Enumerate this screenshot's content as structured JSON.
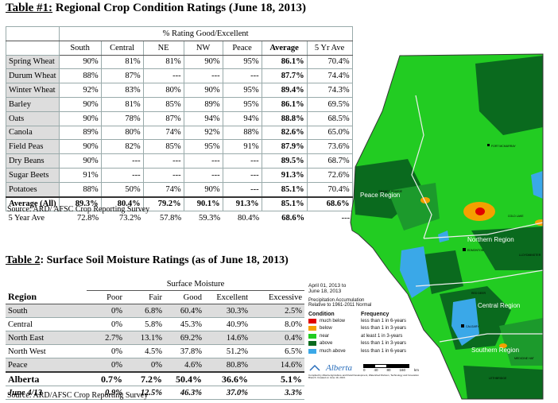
{
  "table1": {
    "title_prefix": "Table #1:",
    "title_rest": " Regional Crop Condition Ratings (June 18, 2013)",
    "group_header": "% Rating Good/Excellent",
    "columns": [
      "South",
      "Central",
      "NE",
      "NW",
      "Peace",
      "Average",
      "5 Yr Ave"
    ],
    "rows": [
      {
        "crop": "Spring Wheat",
        "values": [
          "90%",
          "81%",
          "81%",
          "90%",
          "95%",
          "86.1%",
          "70.4%"
        ]
      },
      {
        "crop": "Durum Wheat",
        "values": [
          "88%",
          "87%",
          "---",
          "---",
          "---",
          "87.7%",
          "74.4%"
        ]
      },
      {
        "crop": "Winter Wheat",
        "values": [
          "92%",
          "83%",
          "80%",
          "90%",
          "95%",
          "89.4%",
          "74.3%"
        ]
      },
      {
        "crop": "Barley",
        "values": [
          "90%",
          "81%",
          "85%",
          "89%",
          "95%",
          "86.1%",
          "69.5%"
        ]
      },
      {
        "crop": "Oats",
        "values": [
          "90%",
          "78%",
          "87%",
          "94%",
          "94%",
          "88.8%",
          "68.5%"
        ]
      },
      {
        "crop": "Canola",
        "values": [
          "89%",
          "80%",
          "74%",
          "92%",
          "88%",
          "82.6%",
          "65.0%"
        ]
      },
      {
        "crop": "Field Peas",
        "values": [
          "90%",
          "82%",
          "85%",
          "95%",
          "91%",
          "87.9%",
          "73.6%"
        ]
      },
      {
        "crop": "Dry Beans",
        "values": [
          "90%",
          "---",
          "---",
          "---",
          "---",
          "89.5%",
          "68.7%"
        ]
      },
      {
        "crop": "Sugar Beets",
        "values": [
          "91%",
          "---",
          "---",
          "---",
          "---",
          "91.3%",
          "72.6%"
        ]
      },
      {
        "crop": "Potatoes",
        "values": [
          "88%",
          "50%",
          "74%",
          "90%",
          "---",
          "85.1%",
          "70.4%"
        ]
      }
    ],
    "average_row": {
      "label": "Average (All)",
      "values": [
        "89.3%",
        "80.4%",
        "79.2%",
        "90.1%",
        "91.3%",
        "85.1%",
        "68.6%"
      ]
    },
    "five_year_row": {
      "label": "5 Year Ave",
      "values": [
        "72.8%",
        "73.2%",
        "57.8%",
        "59.3%",
        "80.4%",
        "68.6%",
        "---"
      ]
    },
    "source": "Source: ARD/ AFSC Crop Reporting Survey"
  },
  "table2": {
    "title_prefix": "Table 2",
    "title_rest": ": Surface Soil Moisture Ratings (as of June 18, 2013)",
    "group_header": "Surface Moisture",
    "region_header": "Region",
    "columns": [
      "Poor",
      "Fair",
      "Good",
      "Excellent",
      "Excessive"
    ],
    "rows": [
      {
        "region": "South",
        "values": [
          "0%",
          "6.8%",
          "60.4%",
          "30.3%",
          "2.5%"
        ]
      },
      {
        "region": "Central",
        "values": [
          "0%",
          "5.8%",
          "45.3%",
          "40.9%",
          "8.0%"
        ]
      },
      {
        "region": "North East",
        "values": [
          "2.7%",
          "13.1%",
          "69.2%",
          "14.6%",
          "0.4%"
        ]
      },
      {
        "region": "North West",
        "values": [
          "0%",
          "4.5%",
          "37.8%",
          "51.2%",
          "6.5%"
        ]
      },
      {
        "region": "Peace",
        "values": [
          "0%",
          "0%",
          "4.6%",
          "80.8%",
          "14.6%"
        ]
      }
    ],
    "alberta_row": {
      "label": "Alberta",
      "values": [
        "0.7%",
        "7.2%",
        "50.4%",
        "36.6%",
        "5.1%"
      ]
    },
    "june_row": {
      "label": "June 4/13",
      "values": [
        "0.9%",
        "12.5%",
        "46.3%",
        "37.0%",
        "3.3%"
      ]
    },
    "source": "Source: ARD/AFSC Crop Reporting Survey"
  },
  "map": {
    "date_line1": "April 01, 2013 to",
    "date_line2": "June 18, 2013",
    "desc_line1": "Precipitation Accumulation",
    "desc_line2": "Relative to 1961-2011 Normal",
    "condition_header": "Condition",
    "frequency_header": "Frequency",
    "legend": [
      {
        "condition": "much below",
        "frequency": "less than 1 in 6-years",
        "color": "#e00000"
      },
      {
        "condition": "below",
        "frequency": "less than 1 in 3-years",
        "color": "#f5a000"
      },
      {
        "condition": "near",
        "frequency": "at least 1 in 3-years",
        "color": "#22cc22"
      },
      {
        "condition": "above",
        "frequency": "less than 1 in 3-years",
        "color": "#0a6a1e"
      },
      {
        "condition": "much above",
        "frequency": "less than 1 in 6-years",
        "color": "#3aa8e8"
      }
    ],
    "region_labels": [
      "Peace Region",
      "Northern Region",
      "Central Region",
      "Southern Region"
    ],
    "towns": [
      "FORT MCMURRAY",
      "GRANDE PRAIRIE",
      "COLD LAKE",
      "EDMONTON",
      "LLOYDMINSTER",
      "RED DEER",
      "CALGARY",
      "MEDICINE HAT",
      "LETHBRIDGE"
    ],
    "logo_text": "Alberta",
    "scale_labels": [
      "0",
      "40",
      "80",
      "160"
    ],
    "scale_unit": "km",
    "footnote": "Compiled by Alberta Agriculture and Rural Development, Watershed Division, Technology and Innovation Branch. Created on June 19, 2013."
  }
}
